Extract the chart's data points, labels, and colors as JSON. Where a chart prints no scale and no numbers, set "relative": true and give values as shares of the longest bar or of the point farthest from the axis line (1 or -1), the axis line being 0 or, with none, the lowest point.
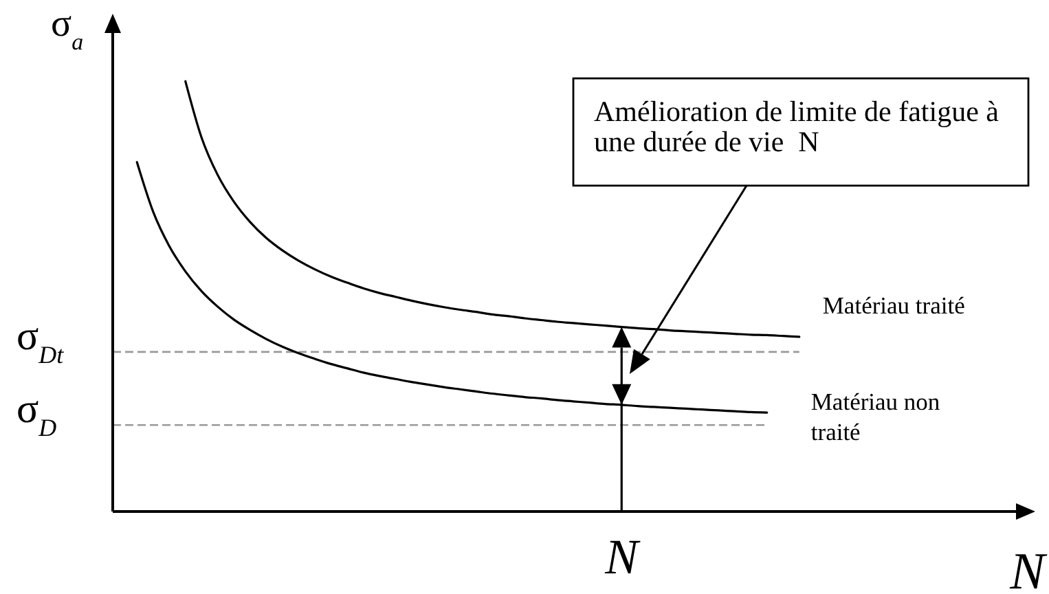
{
  "chart_data": {
    "type": "line",
    "relative": true,
    "ylabel": "σ$_{a}$",
    "xlabel": "N",
    "categories": [
      null,
      null,
      null,
      null,
      null,
      null,
      null,
      null,
      null,
      null,
      null,
      null,
      null,
      null,
      null,
      null,
      null,
      null,
      null,
      null,
      null,
      null,
      null,
      null,
      null,
      null,
      null,
      null,
      null,
      null,
      null,
      null,
      null,
      null,
      null,
      null,
      null,
      null,
      null,
      null,
      null,
      null,
      null,
      null,
      null,
      null,
      null,
      null,
      null,
      null,
      null,
      null,
      null,
      null,
      null,
      null
    ],
    "series": [
      {
        "name": "Matériau traité",
        "color": "#000000",
        "values": [
          null,
          null,
          null,
          null,
          1,
          0.869,
          0.782,
          0.72,
          0.673,
          0.636,
          0.607,
          0.583,
          0.563,
          0.546,
          0.532,
          0.519,
          0.508,
          0.499,
          0.49,
          0.482,
          0.475,
          0.469,
          0.464,
          0.458,
          0.454,
          0.449,
          0.445,
          0.441,
          0.438,
          0.435,
          0.432,
          0.429,
          0.426,
          0.424,
          0.421,
          0.419,
          0.417,
          0.415,
          0.413,
          0.411,
          0.41,
          0.408,
          0.406,
          null,
          null,
          null,
          null,
          null,
          null,
          null,
          null,
          null,
          null,
          null,
          null,
          null
        ]
      },
      {
        "name": "Matériau non traité",
        "color": "#000000",
        "values": [
          null,
          0.812,
          0.697,
          0.617,
          0.558,
          0.512,
          0.476,
          0.446,
          0.422,
          0.401,
          0.383,
          0.368,
          0.355,
          0.343,
          0.333,
          0.323,
          0.315,
          0.308,
          0.301,
          0.295,
          0.289,
          0.284,
          0.279,
          0.274,
          0.27,
          0.266,
          0.263,
          0.259,
          0.256,
          0.253,
          0.25,
          0.248,
          0.245,
          0.243,
          0.241,
          0.239,
          0.237,
          0.235,
          0.233,
          0.231,
          0.23,
          null,
          null,
          null,
          null,
          null,
          null,
          null,
          null,
          null,
          null,
          null,
          null,
          null,
          null,
          null
        ]
      }
    ],
    "ref_lines": [
      {
        "axis": "y",
        "value": 0.371,
        "label": "σ$_{Dt}$",
        "color": "#999999",
        "line_style": "dashed"
      },
      {
        "axis": "y",
        "value": 0.201,
        "label": "σ$_{D}$",
        "color": "#999999",
        "line_style": "dashed"
      }
    ],
    "annotations": [
      "Amélioration de limite de fatigue à une durée de vie  N",
      "N"
    ]
  }
}
